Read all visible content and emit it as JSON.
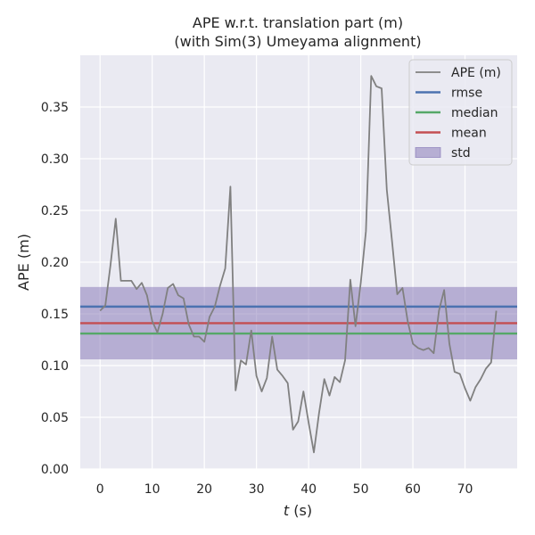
{
  "chart_data": {
    "type": "line",
    "title": "APE w.r.t. translation part (m)",
    "subtitle": "(with Sim(3) Umeyama alignment)",
    "xlabel_italic": "t",
    "xlabel_unit": " (s)",
    "ylabel": "APE (m)",
    "xlim": [
      -3.8,
      80
    ],
    "ylim": [
      0,
      0.4
    ],
    "xticks": [
      0,
      10,
      20,
      30,
      40,
      50,
      60,
      70
    ],
    "yticks": [
      0.0,
      0.05,
      0.1,
      0.15,
      0.2,
      0.25,
      0.3,
      0.35
    ],
    "ytick_labels": [
      "0.00",
      "0.05",
      "0.10",
      "0.15",
      "0.20",
      "0.25",
      "0.30",
      "0.35"
    ],
    "grid": true,
    "legend_position": "top-right",
    "series": [
      {
        "name": "APE (m)",
        "color": "#808080",
        "x": [
          0,
          1,
          2,
          3,
          4,
          5,
          6,
          7,
          8,
          9,
          10,
          11,
          12,
          13,
          14,
          15,
          16,
          17,
          18,
          19,
          20,
          21,
          22,
          23,
          24,
          25,
          26,
          27,
          28,
          29,
          30,
          31,
          32,
          33,
          34,
          35,
          36,
          37,
          38,
          39,
          40,
          41,
          42,
          43,
          44,
          45,
          46,
          47,
          48,
          49,
          50,
          51,
          52,
          53,
          54,
          55,
          56,
          57,
          58,
          59,
          60,
          61,
          62,
          63,
          64,
          65,
          66,
          67,
          68,
          69,
          70,
          71,
          72,
          73,
          74,
          75,
          76
        ],
        "y": [
          0.153,
          0.158,
          0.197,
          0.242,
          0.182,
          0.182,
          0.182,
          0.174,
          0.18,
          0.168,
          0.143,
          0.132,
          0.15,
          0.175,
          0.179,
          0.168,
          0.165,
          0.14,
          0.128,
          0.128,
          0.123,
          0.147,
          0.157,
          0.177,
          0.194,
          0.273,
          0.076,
          0.105,
          0.101,
          0.134,
          0.09,
          0.075,
          0.088,
          0.128,
          0.096,
          0.09,
          0.083,
          0.038,
          0.046,
          0.075,
          0.045,
          0.016,
          0.054,
          0.087,
          0.071,
          0.089,
          0.084,
          0.105,
          0.183,
          0.138,
          0.18,
          0.23,
          0.38,
          0.37,
          0.368,
          0.27,
          0.22,
          0.169,
          0.175,
          0.143,
          0.121,
          0.117,
          0.115,
          0.117,
          0.112,
          0.153,
          0.173,
          0.121,
          0.094,
          0.092,
          0.078,
          0.066,
          0.079,
          0.087,
          0.097,
          0.103,
          0.153
        ]
      },
      {
        "name": "rmse",
        "color": "#4c72b0",
        "value": 0.157
      },
      {
        "name": "median",
        "color": "#55a868",
        "value": 0.131
      },
      {
        "name": "mean",
        "color": "#c44e52",
        "value": 0.141
      },
      {
        "name": "std",
        "color": "#8172b3",
        "range": [
          0.106,
          0.176
        ]
      }
    ]
  },
  "style": {
    "plot_background": "#eaeaf2",
    "grid_color": "#ffffff",
    "std_fill_opacity": 0.5
  }
}
